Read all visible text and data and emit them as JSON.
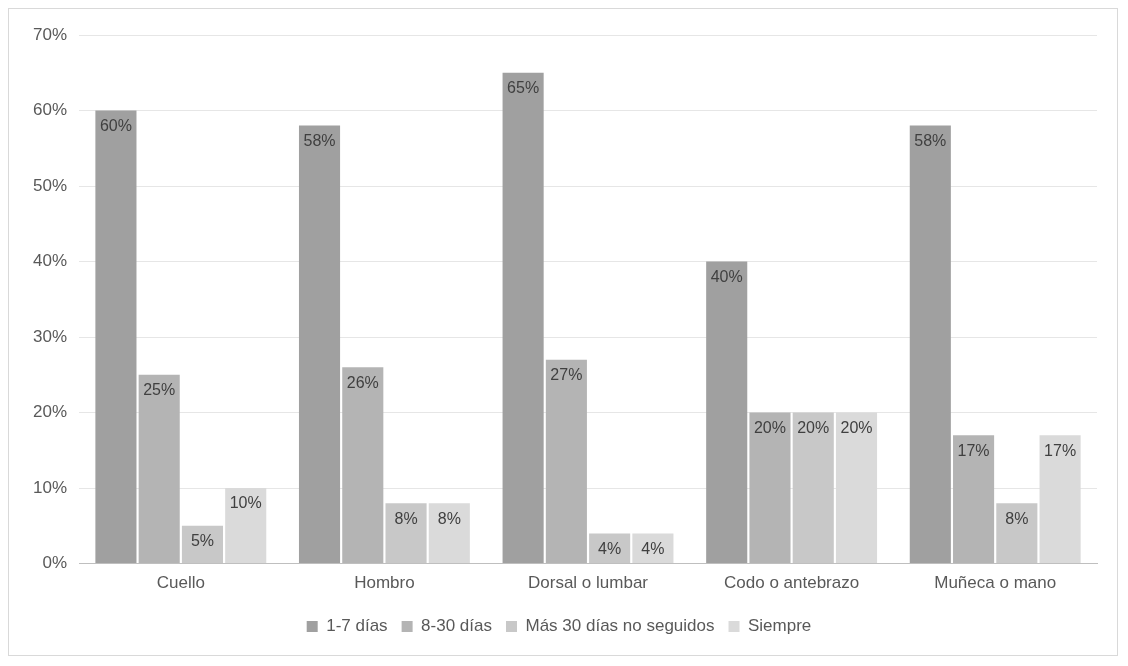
{
  "chart_data": {
    "type": "bar",
    "categories": [
      "Cuello",
      "Hombro",
      "Dorsal o lumbar",
      "Codo o antebrazo",
      "Muñeca o mano"
    ],
    "series": [
      {
        "name": "1-7 días",
        "color": "#a0a0a0",
        "values": [
          60,
          58,
          65,
          40,
          58
        ],
        "value_labels": [
          "60%",
          "58%",
          "65%",
          "40%",
          "58%"
        ]
      },
      {
        "name": "8-30 días",
        "color": "#b4b4b4",
        "values": [
          25,
          26,
          27,
          20,
          17
        ],
        "value_labels": [
          "25%",
          "26%",
          "27%",
          "20%",
          "17%"
        ]
      },
      {
        "name": "Más 30 días no seguidos",
        "color": "#c8c8c8",
        "values": [
          5,
          8,
          4,
          20,
          8
        ],
        "value_labels": [
          "5%",
          "8%",
          "4%",
          "20%",
          "8%"
        ]
      },
      {
        "name": "Siempre",
        "color": "#dadada",
        "values": [
          10,
          8,
          4,
          20,
          17
        ],
        "value_labels": [
          "10%",
          "8%",
          "4%",
          "20%",
          "17%"
        ]
      }
    ],
    "ylim": [
      0,
      70
    ],
    "yticks": [
      {
        "value": 0,
        "label": "0%"
      },
      {
        "value": 10,
        "label": "10%"
      },
      {
        "value": 20,
        "label": "20%"
      },
      {
        "value": 30,
        "label": "30%"
      },
      {
        "value": 40,
        "label": "40%"
      },
      {
        "value": 50,
        "label": "50%"
      },
      {
        "value": 60,
        "label": "60%"
      },
      {
        "value": 70,
        "label": "70%"
      }
    ],
    "grid": "y",
    "legend": "bottom"
  }
}
